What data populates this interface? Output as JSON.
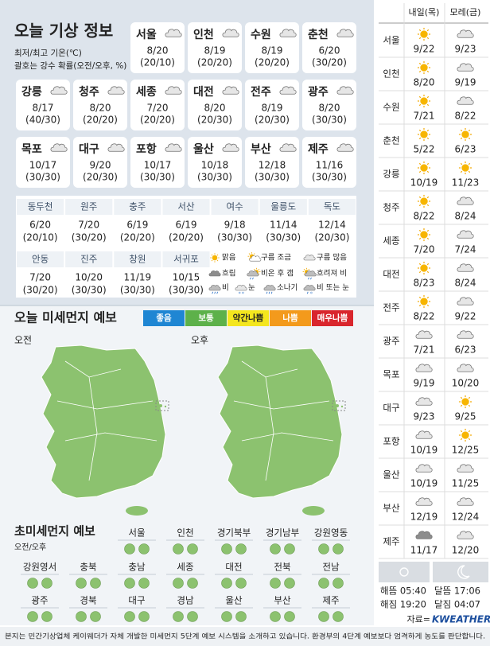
{
  "header": {
    "title": "오늘 기상 정보",
    "notes": [
      "최저/최고 기온(℃)",
      "괄호는 강수 확률(오전/오후, %)"
    ]
  },
  "main_cities": [
    {
      "name": "서울",
      "temp": "8/20",
      "prob": "(20/10)",
      "icon": "cloud"
    },
    {
      "name": "인천",
      "temp": "8/19",
      "prob": "(20/20)",
      "icon": "cloud"
    },
    {
      "name": "수원",
      "temp": "8/19",
      "prob": "(20/20)",
      "icon": "cloud"
    },
    {
      "name": "춘천",
      "temp": "6/20",
      "prob": "(30/20)",
      "icon": "cloud"
    },
    {
      "name": "강릉",
      "temp": "8/17",
      "prob": "(40/30)",
      "icon": "cloud"
    },
    {
      "name": "청주",
      "temp": "8/20",
      "prob": "(20/20)",
      "icon": "cloud"
    },
    {
      "name": "세종",
      "temp": "7/20",
      "prob": "(20/20)",
      "icon": "cloud"
    },
    {
      "name": "대전",
      "temp": "8/20",
      "prob": "(20/30)",
      "icon": "cloud"
    },
    {
      "name": "전주",
      "temp": "8/19",
      "prob": "(20/30)",
      "icon": "cloud"
    },
    {
      "name": "광주",
      "temp": "8/20",
      "prob": "(30/30)",
      "icon": "cloud"
    },
    {
      "name": "목포",
      "temp": "10/17",
      "prob": "(30/30)",
      "icon": "cloud"
    },
    {
      "name": "대구",
      "temp": "9/20",
      "prob": "(20/30)",
      "icon": "cloud"
    },
    {
      "name": "포항",
      "temp": "10/17",
      "prob": "(30/30)",
      "icon": "cloud"
    },
    {
      "name": "울산",
      "temp": "10/18",
      "prob": "(30/30)",
      "icon": "cloud"
    },
    {
      "name": "부산",
      "temp": "12/18",
      "prob": "(30/30)",
      "icon": "cloud"
    },
    {
      "name": "제주",
      "temp": "11/16",
      "prob": "(30/30)",
      "icon": "cloud"
    }
  ],
  "other_cities": [
    {
      "name": "동두천",
      "temp": "6/20",
      "prob": "(20/10)"
    },
    {
      "name": "원주",
      "temp": "7/20",
      "prob": "(30/20)"
    },
    {
      "name": "충주",
      "temp": "6/19",
      "prob": "(20/20)"
    },
    {
      "name": "서산",
      "temp": "6/19",
      "prob": "(20/20)"
    },
    {
      "name": "여수",
      "temp": "9/18",
      "prob": "(30/30)"
    },
    {
      "name": "울릉도",
      "temp": "11/14",
      "prob": "(30/30)"
    },
    {
      "name": "독도",
      "temp": "12/14",
      "prob": "(20/30)"
    },
    {
      "name": "안동",
      "temp": "7/20",
      "prob": "(30/20)"
    },
    {
      "name": "진주",
      "temp": "10/20",
      "prob": "(30/30)"
    },
    {
      "name": "창원",
      "temp": "11/19",
      "prob": "(30/30)"
    },
    {
      "name": "서귀포",
      "temp": "10/15",
      "prob": "(30/30)"
    }
  ],
  "legend": [
    {
      "label": "맑음",
      "icon": "sun"
    },
    {
      "label": "구름 조금",
      "icon": "sun-cloud"
    },
    {
      "label": "구름 많음",
      "icon": "cloud"
    },
    {
      "label": "흐림",
      "icon": "overcast"
    },
    {
      "label": "비온 후 갬",
      "icon": "rain-clear"
    },
    {
      "label": "흐려져 비",
      "icon": "cloud-rain"
    },
    {
      "label": "비",
      "icon": "rain"
    },
    {
      "label": "눈",
      "icon": "snow"
    },
    {
      "label": "소나기",
      "icon": "shower"
    },
    {
      "label": "비 또는 눈",
      "icon": "rain-snow"
    }
  ],
  "dust": {
    "title": "오늘 미세먼지 예보",
    "levels": [
      {
        "label": "좋음",
        "color": "#1f86d3",
        "text_color": "#ffffff"
      },
      {
        "label": "보통",
        "color": "#5db14a",
        "text_color": "#ffffff"
      },
      {
        "label": "약간나쁨",
        "color": "#f4e61e",
        "text_color": "#222222"
      },
      {
        "label": "나쁨",
        "color": "#f39a1c",
        "text_color": "#ffffff"
      },
      {
        "label": "매우나쁨",
        "color": "#d9262d",
        "text_color": "#ffffff"
      }
    ],
    "maps": [
      {
        "label": "오전",
        "color": "#8cc26f"
      },
      {
        "label": "오후",
        "color": "#8cc26f"
      }
    ]
  },
  "fine_dust": {
    "title": "초미세먼지 예보",
    "subtitle": "오전/오후",
    "regions": [
      {
        "name": "서울",
        "colors": [
          "#8cc26f",
          "#8cc26f"
        ]
      },
      {
        "name": "인천",
        "colors": [
          "#8cc26f",
          "#8cc26f"
        ]
      },
      {
        "name": "경기북부",
        "colors": [
          "#8cc26f",
          "#8cc26f"
        ]
      },
      {
        "name": "경기남부",
        "colors": [
          "#8cc26f",
          "#8cc26f"
        ]
      },
      {
        "name": "강원영동",
        "colors": [
          "#8cc26f",
          "#8cc26f"
        ]
      },
      {
        "name": "강원영서",
        "colors": [
          "#8cc26f",
          "#8cc26f"
        ]
      },
      {
        "name": "충북",
        "colors": [
          "#8cc26f",
          "#8cc26f"
        ]
      },
      {
        "name": "충남",
        "colors": [
          "#8cc26f",
          "#8cc26f"
        ]
      },
      {
        "name": "세종",
        "colors": [
          "#8cc26f",
          "#8cc26f"
        ]
      },
      {
        "name": "대전",
        "colors": [
          "#8cc26f",
          "#8cc26f"
        ]
      },
      {
        "name": "전북",
        "colors": [
          "#8cc26f",
          "#8cc26f"
        ]
      },
      {
        "name": "전남",
        "colors": [
          "#8cc26f",
          "#8cc26f"
        ]
      },
      {
        "name": "광주",
        "colors": [
          "#8cc26f",
          "#8cc26f"
        ]
      },
      {
        "name": "경북",
        "colors": [
          "#8cc26f",
          "#8cc26f"
        ]
      },
      {
        "name": "대구",
        "colors": [
          "#8cc26f",
          "#8cc26f"
        ]
      },
      {
        "name": "경남",
        "colors": [
          "#8cc26f",
          "#8cc26f"
        ]
      },
      {
        "name": "울산",
        "colors": [
          "#8cc26f",
          "#8cc26f"
        ]
      },
      {
        "name": "부산",
        "colors": [
          "#8cc26f",
          "#8cc26f"
        ]
      },
      {
        "name": "제주",
        "colors": [
          "#8cc26f",
          "#8cc26f"
        ]
      }
    ]
  },
  "forecast": {
    "columns": [
      "내일(목)",
      "모레(금)"
    ],
    "rows": [
      {
        "name": "서울",
        "days": [
          {
            "icon": "sun",
            "temp": "9/22"
          },
          {
            "icon": "cloud",
            "temp": "9/23"
          }
        ]
      },
      {
        "name": "인천",
        "days": [
          {
            "icon": "sun",
            "temp": "8/20"
          },
          {
            "icon": "cloud",
            "temp": "9/19"
          }
        ]
      },
      {
        "name": "수원",
        "days": [
          {
            "icon": "sun",
            "temp": "7/21"
          },
          {
            "icon": "cloud",
            "temp": "8/22"
          }
        ]
      },
      {
        "name": "춘천",
        "days": [
          {
            "icon": "sun",
            "temp": "5/22"
          },
          {
            "icon": "sun",
            "temp": "6/23"
          }
        ]
      },
      {
        "name": "강릉",
        "days": [
          {
            "icon": "sun",
            "temp": "10/19"
          },
          {
            "icon": "sun",
            "temp": "11/23"
          }
        ]
      },
      {
        "name": "청주",
        "days": [
          {
            "icon": "sun",
            "temp": "8/22"
          },
          {
            "icon": "cloud",
            "temp": "8/24"
          }
        ]
      },
      {
        "name": "세종",
        "days": [
          {
            "icon": "sun",
            "temp": "7/20"
          },
          {
            "icon": "cloud",
            "temp": "7/24"
          }
        ]
      },
      {
        "name": "대전",
        "days": [
          {
            "icon": "sun",
            "temp": "8/23"
          },
          {
            "icon": "cloud",
            "temp": "8/24"
          }
        ]
      },
      {
        "name": "전주",
        "days": [
          {
            "icon": "sun",
            "temp": "8/22"
          },
          {
            "icon": "cloud",
            "temp": "9/22"
          }
        ]
      },
      {
        "name": "광주",
        "days": [
          {
            "icon": "cloud",
            "temp": "7/21"
          },
          {
            "icon": "cloud",
            "temp": "6/23"
          }
        ]
      },
      {
        "name": "목포",
        "days": [
          {
            "icon": "cloud",
            "temp": "9/19"
          },
          {
            "icon": "cloud",
            "temp": "10/20"
          }
        ]
      },
      {
        "name": "대구",
        "days": [
          {
            "icon": "cloud",
            "temp": "9/23"
          },
          {
            "icon": "sun",
            "temp": "9/25"
          }
        ]
      },
      {
        "name": "포항",
        "days": [
          {
            "icon": "cloud",
            "temp": "10/19"
          },
          {
            "icon": "sun",
            "temp": "12/25"
          }
        ]
      },
      {
        "name": "울산",
        "days": [
          {
            "icon": "cloud",
            "temp": "10/19"
          },
          {
            "icon": "cloud",
            "temp": "11/25"
          }
        ]
      },
      {
        "name": "부산",
        "days": [
          {
            "icon": "cloud",
            "temp": "12/19"
          },
          {
            "icon": "cloud",
            "temp": "12/24"
          }
        ]
      },
      {
        "name": "제주",
        "days": [
          {
            "icon": "overcast",
            "temp": "11/17"
          },
          {
            "icon": "cloud",
            "temp": "12/20"
          }
        ]
      }
    ]
  },
  "sun_moon": [
    "해뜸 05:40",
    "해짐 19:20",
    "달뜸 17:06",
    "달짐 04:07"
  ],
  "source": {
    "label": "자료=",
    "name": "KWEATHER"
  },
  "footer": "본지는 민간기상업체 케이웨더가 자체 개발한 미세먼지 5단계 예보 시스템을 소개하고 있습니다. 환경부의 4단계 예보보다 엄격하게 농도를 판단합니다."
}
